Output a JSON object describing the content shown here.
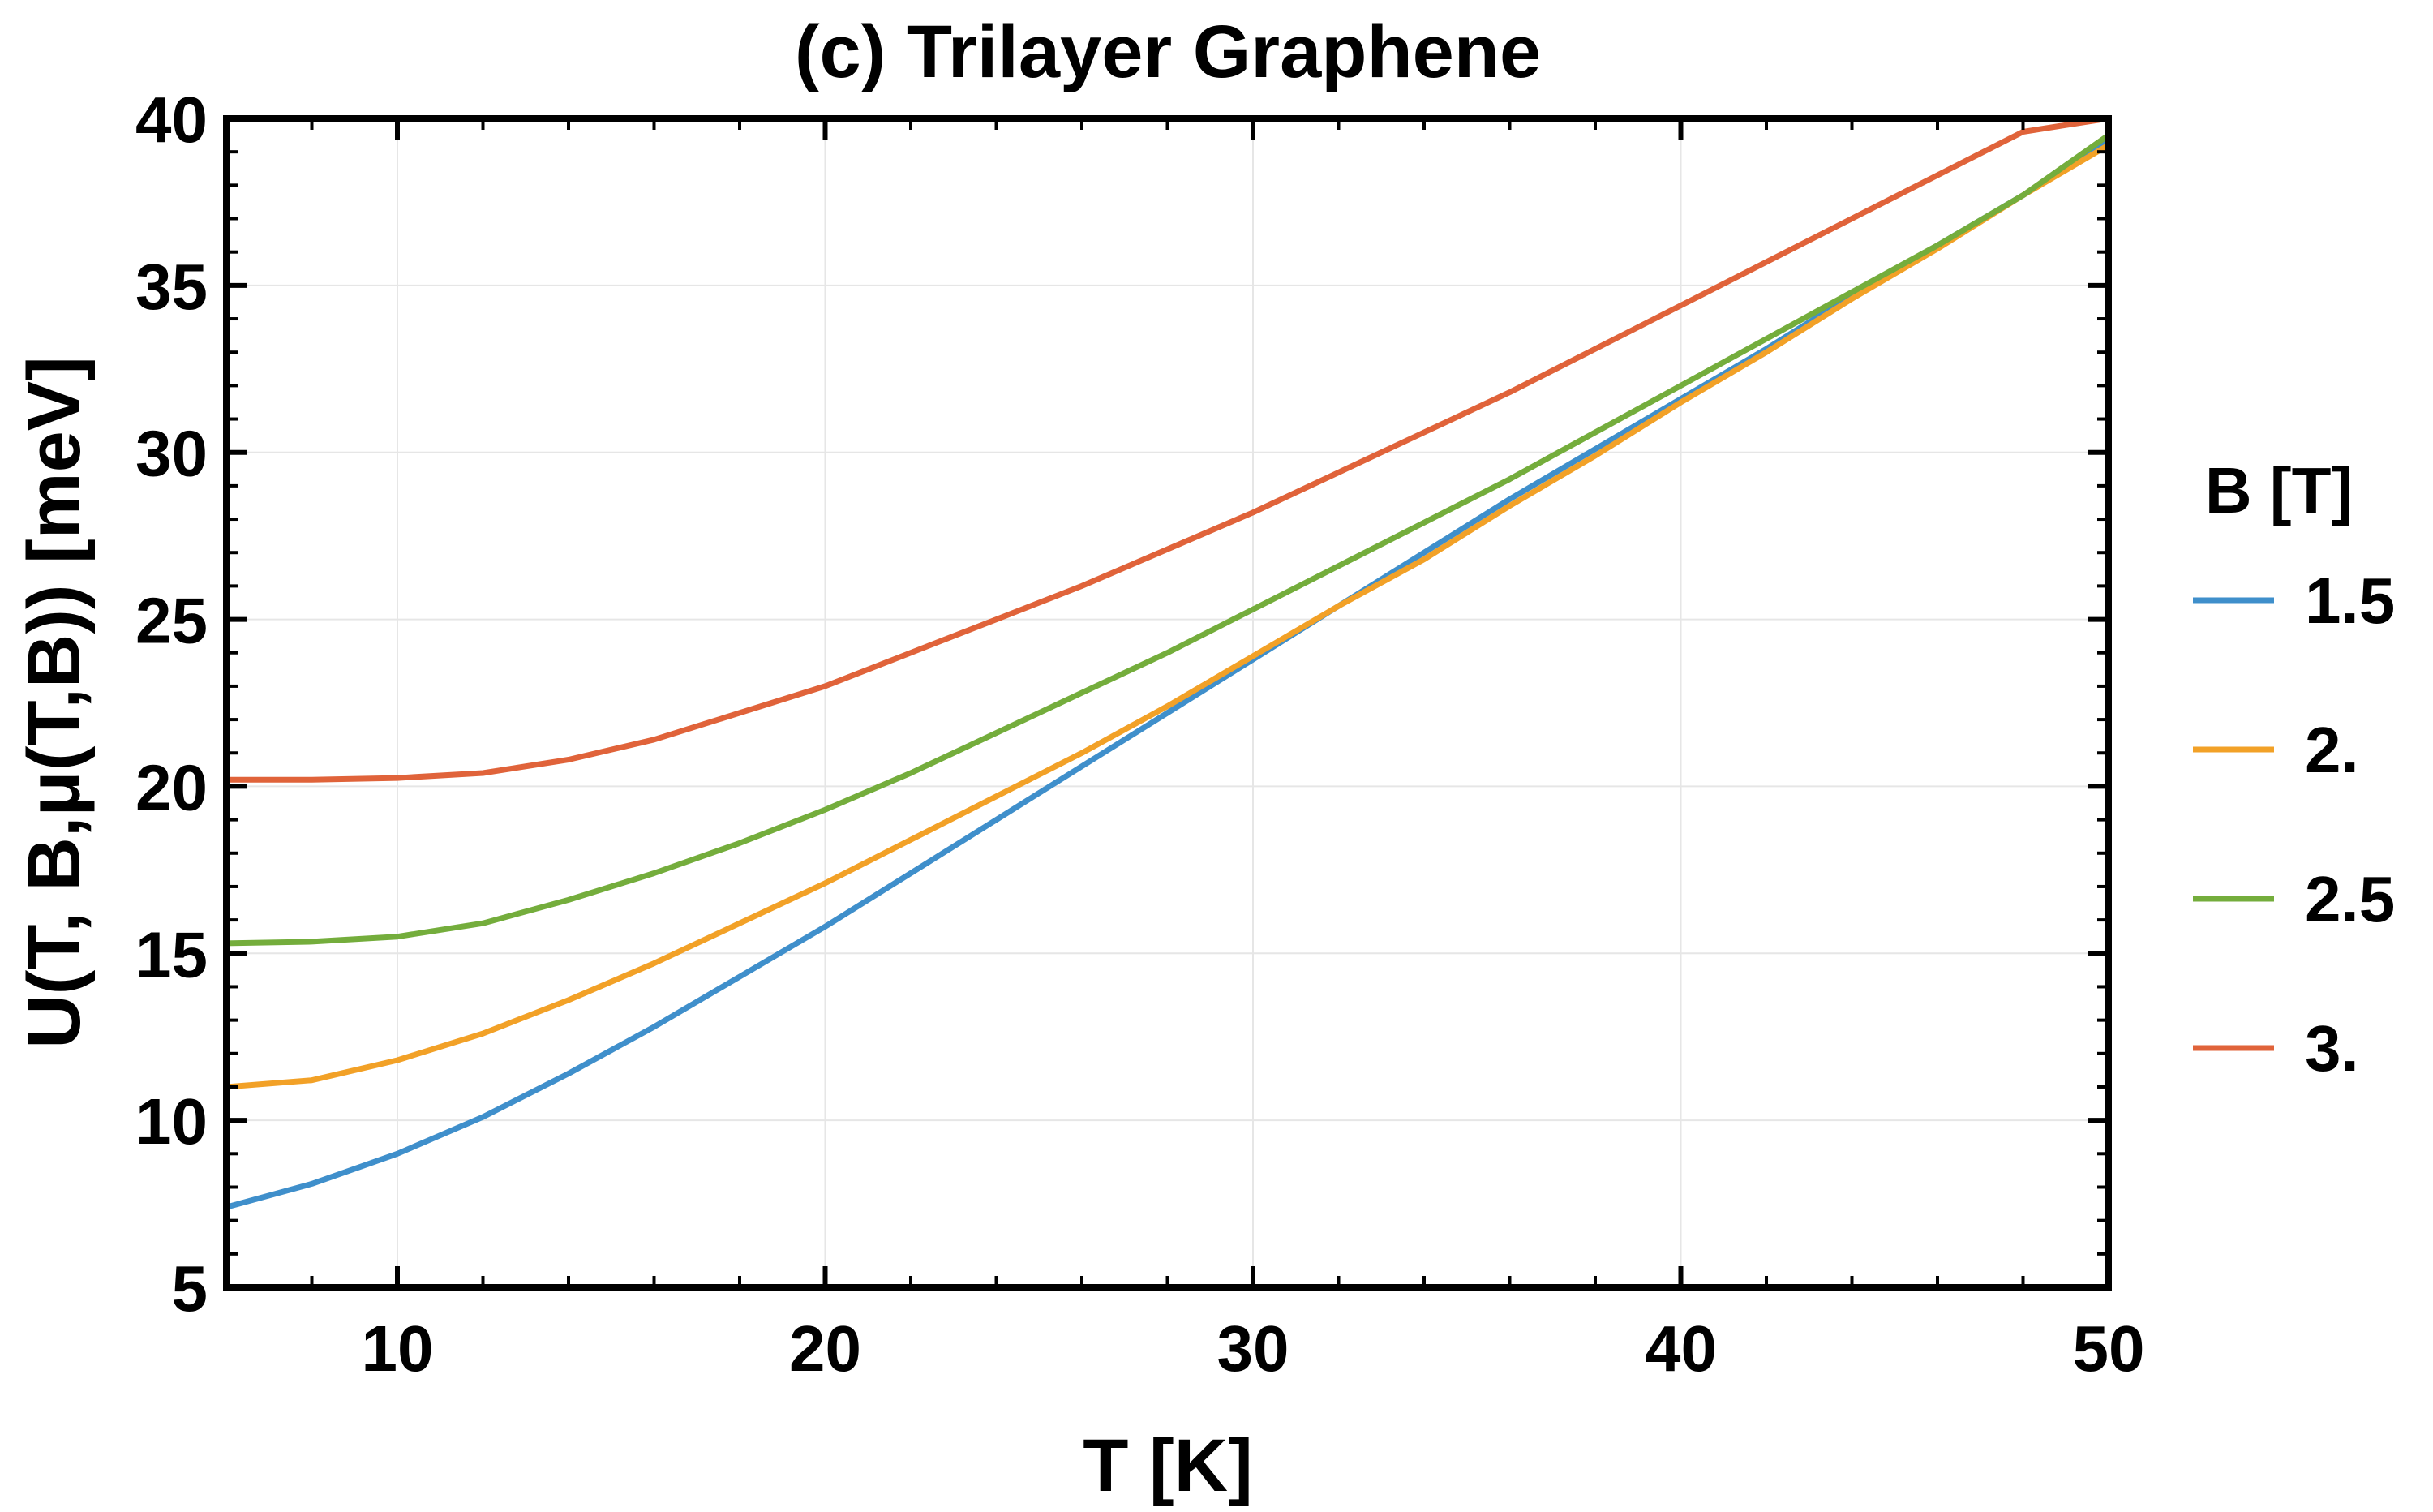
{
  "chart_data": {
    "type": "line",
    "title": "(c) Trilayer Graphene",
    "xlabel": "T [K]",
    "ylabel": "U(T, B,μ(T,B)) [meV]",
    "xlim": [
      6,
      50
    ],
    "ylim": [
      5,
      40
    ],
    "xticks": [
      10,
      20,
      30,
      40,
      50
    ],
    "yticks": [
      5,
      10,
      15,
      20,
      25,
      30,
      35,
      40
    ],
    "legend_title": "B [T]",
    "legend_position": "right",
    "x": [
      6,
      8,
      10,
      12,
      14,
      16,
      18,
      20,
      22,
      24,
      26,
      28,
      30,
      32,
      34,
      36,
      38,
      40,
      42,
      44,
      46,
      48,
      50
    ],
    "series": [
      {
        "name": "1.5",
        "color": "#3f8fcb",
        "values": [
          7.4,
          8.1,
          9.0,
          10.1,
          11.4,
          12.8,
          14.3,
          15.8,
          17.4,
          19.0,
          20.6,
          22.2,
          23.8,
          25.4,
          27.0,
          28.6,
          30.1,
          31.6,
          33.1,
          34.7,
          36.2,
          37.7,
          39.3
        ]
      },
      {
        "name": "2.",
        "color": "#f2a127",
        "values": [
          11.0,
          11.2,
          11.8,
          12.6,
          13.6,
          14.7,
          15.9,
          17.1,
          18.4,
          19.7,
          21.0,
          22.4,
          23.9,
          25.4,
          26.8,
          28.4,
          29.9,
          31.5,
          33.0,
          34.6,
          36.1,
          37.7,
          39.2
        ]
      },
      {
        "name": "2.5",
        "color": "#74ad3c",
        "values": [
          15.3,
          15.35,
          15.5,
          15.9,
          16.6,
          17.4,
          18.3,
          19.3,
          20.4,
          21.6,
          22.8,
          24.0,
          25.3,
          26.6,
          27.9,
          29.2,
          30.6,
          32.0,
          33.4,
          34.8,
          36.2,
          37.7,
          39.5
        ]
      },
      {
        "name": "3.",
        "color": "#e0633a",
        "values": [
          20.2,
          20.2,
          20.25,
          20.4,
          20.8,
          21.4,
          22.2,
          23.0,
          24.0,
          25.0,
          26.0,
          27.1,
          28.2,
          29.4,
          30.6,
          31.8,
          33.1,
          34.4,
          35.7,
          37.0,
          38.3,
          39.6,
          40.0
        ]
      }
    ]
  }
}
